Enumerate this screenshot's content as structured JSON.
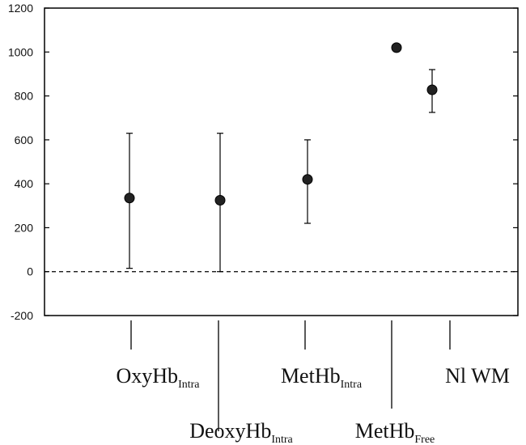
{
  "chart_data": {
    "type": "scatter",
    "title": "",
    "xlabel": "",
    "ylabel": "",
    "ylim": [
      -200,
      1200
    ],
    "yticks": [
      -200,
      0,
      200,
      400,
      600,
      800,
      1000,
      1200
    ],
    "grid": false,
    "zero_line": "dashed",
    "error_bars": true,
    "categories": [
      {
        "main": "OxyHb",
        "sub": "Intra",
        "value": 335,
        "lower": 15,
        "upper": 630,
        "label_row": "upper"
      },
      {
        "main": "DeoxyHb",
        "sub": "Intra",
        "value": 325,
        "lower": 0,
        "upper": 630,
        "label_row": "lower"
      },
      {
        "main": "MetHb",
        "sub": "Intra",
        "value": 420,
        "lower": 220,
        "upper": 600,
        "label_row": "upper"
      },
      {
        "main": "MetHb",
        "sub": "Free",
        "value": 1020,
        "lower": 1005,
        "upper": 1035,
        "label_row": "lower"
      },
      {
        "main": "Nl WM",
        "sub": "",
        "value": 828,
        "lower": 725,
        "upper": 920,
        "label_row": "upper"
      }
    ]
  }
}
